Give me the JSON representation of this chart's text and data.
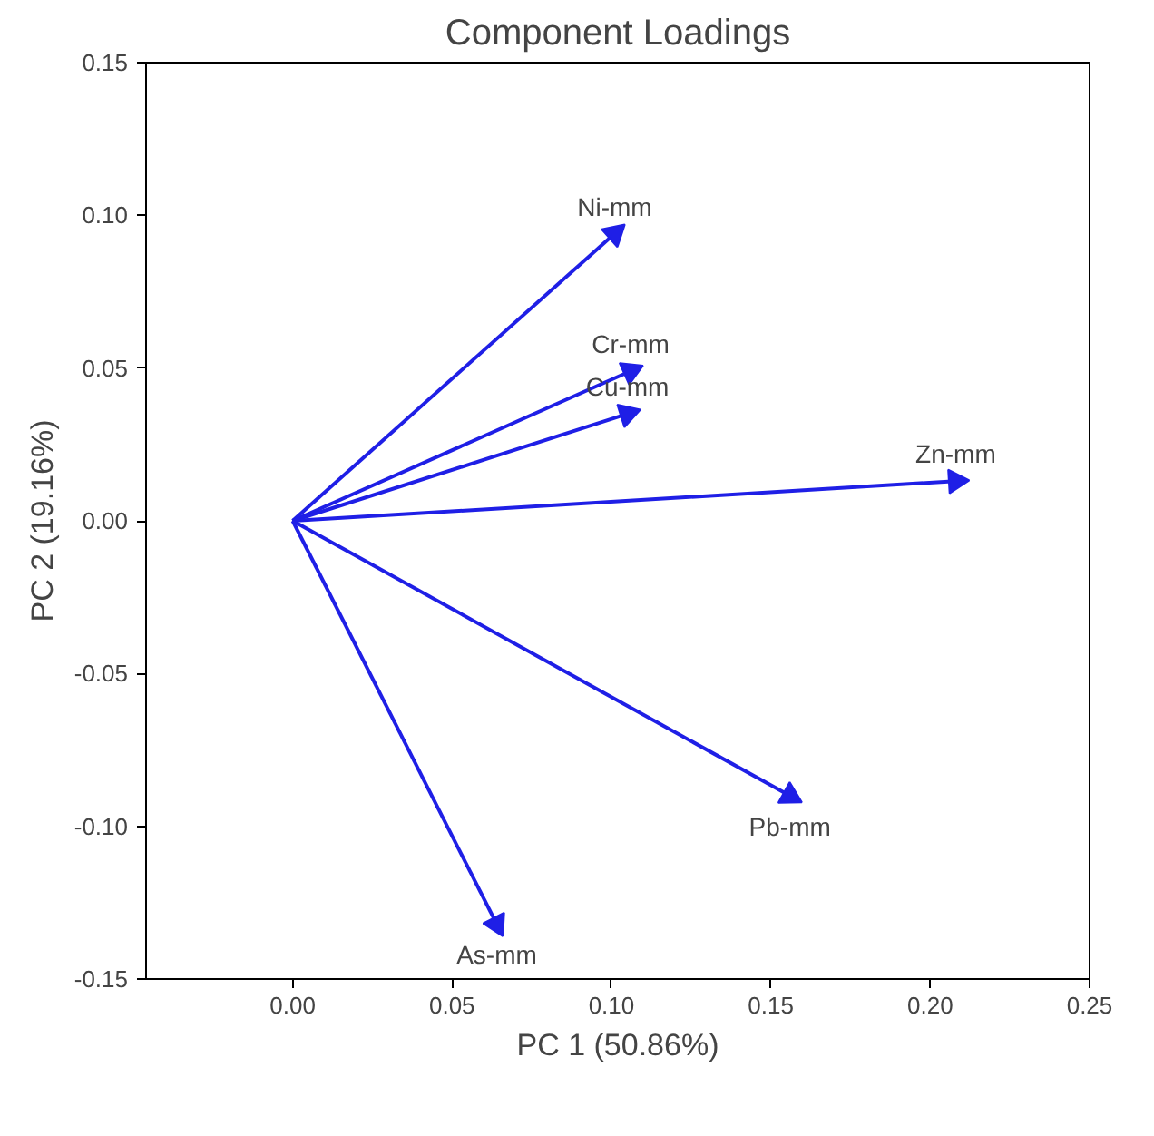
{
  "chart_data": {
    "type": "scatter",
    "title": "Component Loadings",
    "xlabel": "PC 1 (50.86%)",
    "ylabel": "PC 2 (19.16%)",
    "xlim": [
      -0.046,
      0.25
    ],
    "ylim": [
      -0.15,
      0.15
    ],
    "xticks": [
      {
        "value": 0,
        "label": "0.00"
      },
      {
        "value": 0.05,
        "label": "0.05"
      },
      {
        "value": 0.1,
        "label": "0.10"
      },
      {
        "value": 0.15,
        "label": "0.15"
      },
      {
        "value": 0.2,
        "label": "0.20"
      },
      {
        "value": 0.25,
        "label": "0.25"
      }
    ],
    "yticks": [
      {
        "value": -0.15,
        "label": "-0.15"
      },
      {
        "value": -0.1,
        "label": "-0.10"
      },
      {
        "value": -0.05,
        "label": "-0.05"
      },
      {
        "value": 0,
        "label": "0.00"
      },
      {
        "value": 0.05,
        "label": "0.05"
      },
      {
        "value": 0.1,
        "label": "0.10"
      },
      {
        "value": 0.15,
        "label": "0.15"
      }
    ],
    "grid": false,
    "marker": "triangle",
    "series": [
      {
        "color": "#1f1fe6",
        "x": [
          0.101,
          0.106,
          0.105,
          0.208,
          0.156,
          0.064
        ],
        "values": [
          0.094,
          0.049,
          0.035,
          0.013,
          -0.09,
          -0.132
        ]
      }
    ],
    "annotations": [
      {
        "text": "Ni-mm",
        "x": 0.101,
        "y": 0.094
      },
      {
        "text": "Cr-mm",
        "x": 0.106,
        "y": 0.049
      },
      {
        "text": "Cu-mm",
        "x": 0.105,
        "y": 0.035
      },
      {
        "text": "Zn-mm",
        "x": 0.208,
        "y": 0.013
      },
      {
        "text": "Pb-mm",
        "x": 0.156,
        "y": -0.09
      },
      {
        "text": "As-mm",
        "x": 0.064,
        "y": -0.132
      }
    ]
  }
}
